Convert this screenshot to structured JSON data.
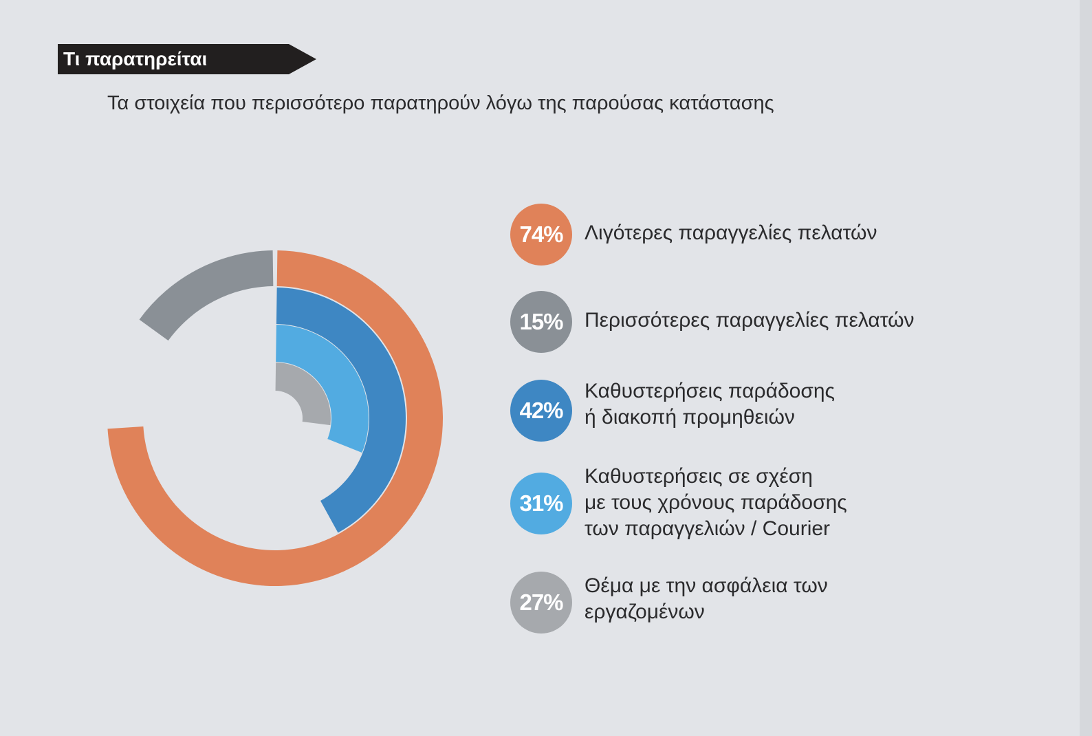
{
  "header": {
    "tag_label": "Τι παρατηρείται",
    "subtitle": "Τα στοιχεία που περισσότερο παρατηρούν λόγω της παρούσας κατάστασης"
  },
  "colors": {
    "orange": "#e08259",
    "gray": "#8a9096",
    "blue": "#3e87c3",
    "light_blue": "#52abe1",
    "light_gray": "#a6a9ad",
    "tag_bg": "#221f1f"
  },
  "chart_data": {
    "type": "radial-bar",
    "title": "",
    "series": [
      {
        "name": "Λιγότερες παραγγελίες πελατών",
        "value": 74,
        "label": "74%",
        "color": "#e08259"
      },
      {
        "name": "Περισσότερες παραγγελίες πελατών",
        "value": 15,
        "label": "15%",
        "color": "#8a9096"
      },
      {
        "name": "Καθυστερήσεις παράδοσης ή διακοπή προμηθειών",
        "value": 42,
        "label": "42%",
        "color": "#3e87c3"
      },
      {
        "name": "Καθυστερήσεις σε σχέση με τους χρόνους παράδοσης των παραγγελιών / Courier",
        "value": 31,
        "label": "31%",
        "color": "#52abe1"
      },
      {
        "name": "Θέμα με την ασφάλεια των εργαζομένων",
        "value": 27,
        "label": "27%",
        "color": "#a6a9ad"
      }
    ]
  },
  "legend": [
    {
      "badge": "74%",
      "lines": [
        "Λιγότερες παραγγελίες πελατών"
      ]
    },
    {
      "badge": "15%",
      "lines": [
        "Περισσότερες παραγγελίες πελατών"
      ]
    },
    {
      "badge": "42%",
      "lines": [
        "Καθυστερήσεις παράδοσης",
        "ή διακοπή προμηθειών"
      ]
    },
    {
      "badge": "31%",
      "lines": [
        "Καθυστερήσεις σε σχέση",
        "με τους χρόνους παράδοσης",
        "των παραγγελιών / Courier"
      ]
    },
    {
      "badge": "27%",
      "lines": [
        "Θέμα με την ασφάλεια των",
        "εργαζομένων"
      ]
    }
  ]
}
